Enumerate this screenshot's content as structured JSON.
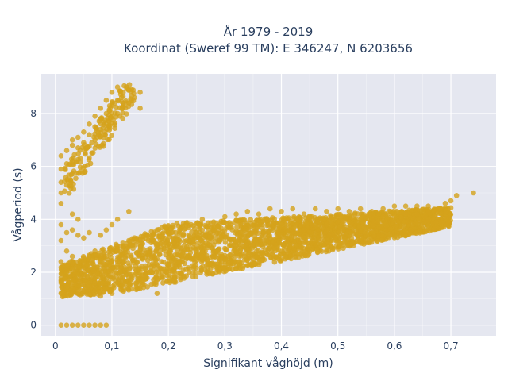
{
  "chart_data": {
    "type": "scatter",
    "title": "År 1979 - 2019",
    "subtitle": "Koordinat (Sweref 99 TM): E 346247, N 6203656",
    "xlabel": "Signifikant våghöjd (m)",
    "ylabel": "Vågperiod (s)",
    "xlim": [
      -0.025,
      0.78
    ],
    "ylim": [
      -0.4,
      9.5
    ],
    "xticks": [
      0,
      0.1,
      0.2,
      0.3,
      0.4,
      0.5,
      0.6,
      0.7
    ],
    "xtick_labels": [
      "0",
      "0,1",
      "0,2",
      "0,3",
      "0,4",
      "0,5",
      "0,6",
      "0,7"
    ],
    "yticks": [
      0,
      2,
      4,
      6,
      8
    ],
    "ytick_labels": [
      "0",
      "2",
      "4",
      "6",
      "8"
    ],
    "grid": true,
    "marker_color": "#d4a21b",
    "plot_bg": "#e5e7f0",
    "series": [
      {
        "points": [
          [
            0.01,
            0.0
          ],
          [
            0.02,
            0.0
          ],
          [
            0.03,
            0.0
          ],
          [
            0.04,
            0.0
          ],
          [
            0.05,
            0.0
          ],
          [
            0.06,
            0.0
          ],
          [
            0.07,
            0.0
          ],
          [
            0.08,
            0.0
          ],
          [
            0.09,
            0.0
          ],
          [
            0.01,
            4.6
          ],
          [
            0.01,
            5.0
          ],
          [
            0.01,
            5.4
          ],
          [
            0.01,
            5.9
          ],
          [
            0.01,
            6.4
          ],
          [
            0.02,
            5.3
          ],
          [
            0.02,
            6.1
          ],
          [
            0.02,
            6.6
          ],
          [
            0.03,
            6.2
          ],
          [
            0.03,
            6.8
          ],
          [
            0.03,
            7.0
          ],
          [
            0.04,
            6.7
          ],
          [
            0.04,
            7.1
          ],
          [
            0.05,
            6.9
          ],
          [
            0.05,
            7.3
          ],
          [
            0.06,
            7.2
          ],
          [
            0.06,
            7.6
          ],
          [
            0.07,
            7.0
          ],
          [
            0.07,
            7.5
          ],
          [
            0.07,
            7.9
          ],
          [
            0.08,
            7.4
          ],
          [
            0.08,
            7.8
          ],
          [
            0.08,
            8.2
          ],
          [
            0.09,
            7.6
          ],
          [
            0.09,
            8.0
          ],
          [
            0.09,
            8.5
          ],
          [
            0.1,
            7.9
          ],
          [
            0.1,
            8.3
          ],
          [
            0.1,
            8.8
          ],
          [
            0.11,
            8.0
          ],
          [
            0.11,
            8.5
          ],
          [
            0.11,
            9.0
          ],
          [
            0.12,
            8.3
          ],
          [
            0.12,
            8.8
          ],
          [
            0.13,
            8.4
          ],
          [
            0.13,
            8.9
          ],
          [
            0.14,
            8.6
          ],
          [
            0.15,
            8.2
          ],
          [
            0.15,
            8.8
          ],
          [
            0.01,
            1.2
          ],
          [
            0.01,
            1.6
          ],
          [
            0.01,
            2.4
          ],
          [
            0.01,
            3.2
          ],
          [
            0.01,
            3.8
          ],
          [
            0.02,
            2.0
          ],
          [
            0.02,
            2.8
          ],
          [
            0.02,
            3.5
          ],
          [
            0.03,
            1.4
          ],
          [
            0.03,
            2.6
          ],
          [
            0.03,
            3.6
          ],
          [
            0.03,
            4.2
          ],
          [
            0.04,
            1.2
          ],
          [
            0.04,
            2.2
          ],
          [
            0.04,
            3.4
          ],
          [
            0.04,
            4.0
          ],
          [
            0.05,
            1.3
          ],
          [
            0.05,
            2.4
          ],
          [
            0.05,
            3.3
          ],
          [
            0.06,
            1.5
          ],
          [
            0.06,
            2.6
          ],
          [
            0.06,
            3.5
          ],
          [
            0.07,
            1.6
          ],
          [
            0.07,
            2.8
          ],
          [
            0.08,
            1.1
          ],
          [
            0.08,
            2.3
          ],
          [
            0.08,
            3.4
          ],
          [
            0.09,
            1.4
          ],
          [
            0.09,
            2.6
          ],
          [
            0.09,
            3.6
          ],
          [
            0.1,
            1.2
          ],
          [
            0.1,
            2.4
          ],
          [
            0.1,
            3.8
          ],
          [
            0.11,
            1.6
          ],
          [
            0.11,
            2.8
          ],
          [
            0.11,
            4.0
          ],
          [
            0.12,
            1.7
          ],
          [
            0.12,
            3.0
          ],
          [
            0.13,
            1.8
          ],
          [
            0.13,
            3.2
          ],
          [
            0.13,
            4.3
          ],
          [
            0.14,
            1.9
          ],
          [
            0.14,
            3.3
          ],
          [
            0.15,
            2.0
          ],
          [
            0.15,
            3.1
          ],
          [
            0.16,
            2.1
          ],
          [
            0.16,
            3.4
          ],
          [
            0.18,
            1.2
          ],
          [
            0.18,
            2.5
          ],
          [
            0.18,
            3.6
          ],
          [
            0.2,
            2.3
          ],
          [
            0.2,
            3.5
          ],
          [
            0.22,
            2.4
          ],
          [
            0.22,
            3.6
          ],
          [
            0.24,
            2.5
          ],
          [
            0.24,
            3.8
          ],
          [
            0.26,
            2.6
          ],
          [
            0.26,
            4.0
          ],
          [
            0.28,
            2.8
          ],
          [
            0.28,
            3.9
          ],
          [
            0.3,
            2.9
          ],
          [
            0.3,
            4.1
          ],
          [
            0.32,
            3.0
          ],
          [
            0.32,
            4.2
          ],
          [
            0.34,
            3.1
          ],
          [
            0.34,
            4.3
          ],
          [
            0.36,
            3.2
          ],
          [
            0.36,
            4.2
          ],
          [
            0.38,
            3.3
          ],
          [
            0.38,
            4.4
          ],
          [
            0.4,
            3.4
          ],
          [
            0.4,
            4.3
          ],
          [
            0.42,
            3.5
          ],
          [
            0.42,
            4.4
          ],
          [
            0.44,
            3.6
          ],
          [
            0.44,
            4.2
          ],
          [
            0.46,
            3.7
          ],
          [
            0.46,
            4.4
          ],
          [
            0.48,
            3.8
          ],
          [
            0.48,
            4.3
          ],
          [
            0.5,
            3.9
          ],
          [
            0.5,
            4.4
          ],
          [
            0.52,
            3.9
          ],
          [
            0.52,
            4.3
          ],
          [
            0.54,
            4.0
          ],
          [
            0.54,
            4.4
          ],
          [
            0.56,
            4.0
          ],
          [
            0.56,
            4.3
          ],
          [
            0.58,
            4.1
          ],
          [
            0.58,
            4.4
          ],
          [
            0.6,
            4.1
          ],
          [
            0.6,
            4.5
          ],
          [
            0.62,
            4.2
          ],
          [
            0.62,
            4.5
          ],
          [
            0.64,
            4.2
          ],
          [
            0.64,
            4.5
          ],
          [
            0.66,
            4.3
          ],
          [
            0.66,
            4.5
          ],
          [
            0.68,
            4.4
          ],
          [
            0.69,
            4.6
          ],
          [
            0.7,
            4.7
          ],
          [
            0.71,
            4.9
          ],
          [
            0.74,
            5.0
          ]
        ]
      }
    ]
  }
}
